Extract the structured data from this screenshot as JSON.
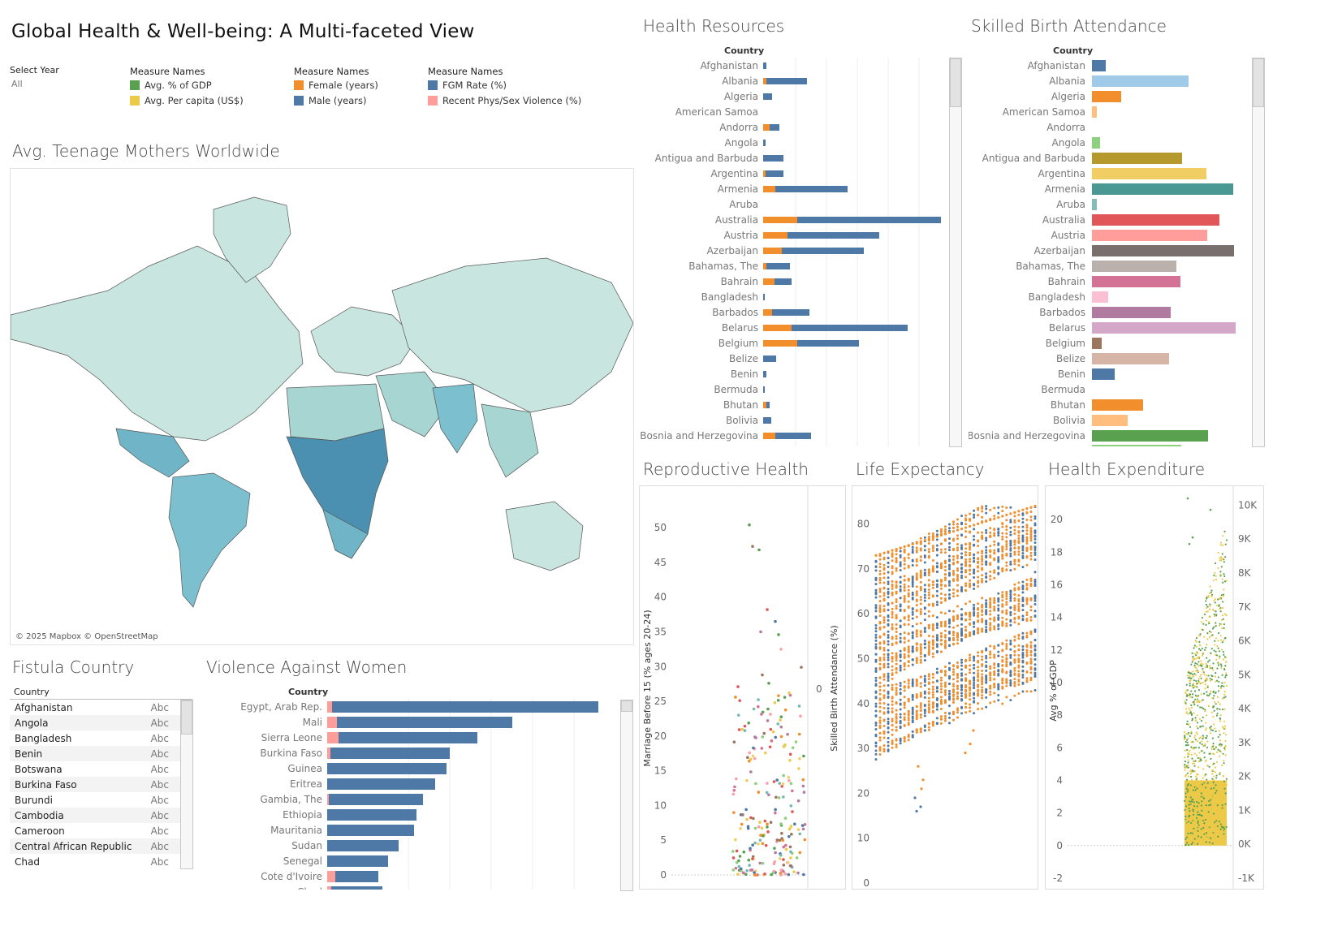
{
  "dashboard": {
    "title": "Global Health & Well-being: A Multi-faceted View"
  },
  "filter": {
    "label": "Select Year",
    "value": "All"
  },
  "legends": [
    {
      "head": "Measure Names",
      "items": [
        {
          "label": "Avg. % of GDP",
          "color": "#59a14f"
        },
        {
          "label": "Avg. Per capita (US$)",
          "color": "#edc948"
        }
      ]
    },
    {
      "head": "Measure Names",
      "items": [
        {
          "label": "Female (years)",
          "color": "#f28e2b"
        },
        {
          "label": "Male (years)",
          "color": "#4e79a7"
        }
      ]
    },
    {
      "head": "Measure Names",
      "items": [
        {
          "label": "FGM Rate (%)",
          "color": "#4e79a7"
        },
        {
          "label": "Recent Phys/Sex Violence (%)",
          "color": "#ff9d9a"
        }
      ]
    }
  ],
  "map": {
    "title": "Avg. Teenage Mothers Worldwide",
    "attribution": "© 2025 Mapbox © OpenStreetMap"
  },
  "health_resources": {
    "title": "Health Resources",
    "col_header": "Country",
    "rows": [
      {
        "country": "Afghanistan",
        "female": 0,
        "male": 4
      },
      {
        "country": "Albania",
        "female": 4,
        "male": 50
      },
      {
        "country": "Algeria",
        "female": 0,
        "male": 11
      },
      {
        "country": "American Samoa",
        "female": 0,
        "male": 0
      },
      {
        "country": "Andorra",
        "female": 8,
        "male": 12
      },
      {
        "country": "Angola",
        "female": 0,
        "male": 3
      },
      {
        "country": "Antigua and Barbuda",
        "female": 0,
        "male": 25
      },
      {
        "country": "Argentina",
        "female": 3,
        "male": 22
      },
      {
        "country": "Armenia",
        "female": 15,
        "male": 89
      },
      {
        "country": "Aruba",
        "female": 0,
        "male": 0
      },
      {
        "country": "Australia",
        "female": 42,
        "male": 177
      },
      {
        "country": "Austria",
        "female": 30,
        "male": 113
      },
      {
        "country": "Azerbaijan",
        "female": 23,
        "male": 101
      },
      {
        "country": "Bahamas, The",
        "female": 4,
        "male": 29
      },
      {
        "country": "Bahrain",
        "female": 14,
        "male": 21
      },
      {
        "country": "Bangladesh",
        "female": 0,
        "male": 2
      },
      {
        "country": "Barbados",
        "female": 11,
        "male": 46
      },
      {
        "country": "Belarus",
        "female": 35,
        "male": 143
      },
      {
        "country": "Belgium",
        "female": 42,
        "male": 76
      },
      {
        "country": "Belize",
        "female": 0,
        "male": 16
      },
      {
        "country": "Benin",
        "female": 0,
        "male": 4
      },
      {
        "country": "Bermuda",
        "female": 0,
        "male": 2
      },
      {
        "country": "Bhutan",
        "female": 4,
        "male": 4
      },
      {
        "country": "Bolivia",
        "female": 0,
        "male": 10
      },
      {
        "country": "Bosnia and Herzegovina",
        "female": 15,
        "male": 44
      }
    ]
  },
  "skilled_birth": {
    "title": "Skilled Birth Attendance",
    "col_header": "Country",
    "rows": [
      {
        "country": "Afghanistan",
        "value": 17,
        "color": "#4e79a7"
      },
      {
        "country": "Albania",
        "value": 119,
        "color": "#a0cbe8"
      },
      {
        "country": "Algeria",
        "value": 36,
        "color": "#f28e2b"
      },
      {
        "country": "American Samoa",
        "value": 6,
        "color": "#ffbe7d"
      },
      {
        "country": "Andorra",
        "value": 0,
        "color": "#59a14f"
      },
      {
        "country": "Angola",
        "value": 10,
        "color": "#8cd17d"
      },
      {
        "country": "Antigua and Barbuda",
        "value": 111,
        "color": "#b6992d"
      },
      {
        "country": "Argentina",
        "value": 141,
        "color": "#f1ce63"
      },
      {
        "country": "Armenia",
        "value": 174,
        "color": "#499894"
      },
      {
        "country": "Aruba",
        "value": 6,
        "color": "#86bcb6"
      },
      {
        "country": "Australia",
        "value": 157,
        "color": "#e15759"
      },
      {
        "country": "Austria",
        "value": 142,
        "color": "#ff9d9a"
      },
      {
        "country": "Azerbaijan",
        "value": 175,
        "color": "#79706e"
      },
      {
        "country": "Bahamas, The",
        "value": 104,
        "color": "#bab0ac"
      },
      {
        "country": "Bahrain",
        "value": 109,
        "color": "#d37295"
      },
      {
        "country": "Bangladesh",
        "value": 20,
        "color": "#fabfd2"
      },
      {
        "country": "Barbados",
        "value": 97,
        "color": "#b07aa1"
      },
      {
        "country": "Belarus",
        "value": 177,
        "color": "#d4a6c8"
      },
      {
        "country": "Belgium",
        "value": 12,
        "color": "#9d7660"
      },
      {
        "country": "Belize",
        "value": 95,
        "color": "#d7b5a6"
      },
      {
        "country": "Benin",
        "value": 28,
        "color": "#4e79a7"
      },
      {
        "country": "Bermuda",
        "value": 0,
        "color": "#a0cbe8"
      },
      {
        "country": "Bhutan",
        "value": 63,
        "color": "#f28e2b"
      },
      {
        "country": "Bolivia",
        "value": 44,
        "color": "#ffbe7d"
      },
      {
        "country": "Bosnia and Herzegovina",
        "value": 143,
        "color": "#59a14f"
      }
    ]
  },
  "fistula": {
    "title": "Fistula Country",
    "col_header": "Country",
    "rows": [
      {
        "country": "Afghanistan",
        "v": "Abc"
      },
      {
        "country": "Angola",
        "v": "Abc"
      },
      {
        "country": "Bangladesh",
        "v": "Abc"
      },
      {
        "country": "Benin",
        "v": "Abc"
      },
      {
        "country": "Botswana",
        "v": "Abc"
      },
      {
        "country": "Burkina Faso",
        "v": "Abc"
      },
      {
        "country": "Burundi",
        "v": "Abc"
      },
      {
        "country": "Cambodia",
        "v": "Abc"
      },
      {
        "country": "Cameroon",
        "v": "Abc"
      },
      {
        "country": "Central African Republic",
        "v": "Abc"
      },
      {
        "country": "Chad",
        "v": "Abc"
      }
    ]
  },
  "violence": {
    "title": "Violence Against Women",
    "col_header": "Country",
    "rows": [
      {
        "country": "Egypt, Arab Rep.",
        "violence": 6,
        "fgm": 334
      },
      {
        "country": "Mali",
        "violence": 12,
        "fgm": 228
      },
      {
        "country": "Sierra Leone",
        "violence": 14,
        "fgm": 185
      },
      {
        "country": "Burkina Faso",
        "violence": 4,
        "fgm": 151
      },
      {
        "country": "Guinea",
        "violence": 0,
        "fgm": 147
      },
      {
        "country": "Eritrea",
        "violence": 0,
        "fgm": 133
      },
      {
        "country": "Gambia, The",
        "violence": 2,
        "fgm": 118
      },
      {
        "country": "Ethiopia",
        "violence": 0,
        "fgm": 110
      },
      {
        "country": "Mauritania",
        "violence": 0,
        "fgm": 107
      },
      {
        "country": "Sudan",
        "violence": 0,
        "fgm": 88
      },
      {
        "country": "Senegal",
        "violence": 0,
        "fgm": 75
      },
      {
        "country": "Cote d'Ivoire",
        "violence": 10,
        "fgm": 63
      },
      {
        "country": "Chad",
        "violence": 5,
        "fgm": 68
      }
    ]
  },
  "reproductive": {
    "title": "Reproductive Health",
    "ylabel": "Marriage Before 15 (% ages 20-24)",
    "yticks": [
      "0",
      "5",
      "10",
      "15",
      "20",
      "25",
      "30",
      "35",
      "40",
      "45",
      "50"
    ],
    "ylim": [
      0,
      52
    ],
    "right_label": "Skilled Birth Attendance (%)",
    "right_tick": "0"
  },
  "life": {
    "title": "Life Expectancy",
    "yticks": [
      "0",
      "10",
      "20",
      "30",
      "40",
      "50",
      "60",
      "70",
      "80"
    ],
    "ylim": [
      0,
      85
    ]
  },
  "expenditure": {
    "title": "Health Expenditure",
    "ylabel": "Avg % of GDP",
    "yticks": [
      "-2",
      "0",
      "2",
      "4",
      "6",
      "8",
      "10",
      "12",
      "14",
      "16",
      "18",
      "20"
    ],
    "ylim": [
      -2.5,
      21.5
    ],
    "y2ticks": [
      "-1K",
      "0K",
      "1K",
      "2K",
      "3K",
      "4K",
      "5K",
      "6K",
      "7K",
      "8K",
      "9K",
      "10K"
    ]
  }
}
